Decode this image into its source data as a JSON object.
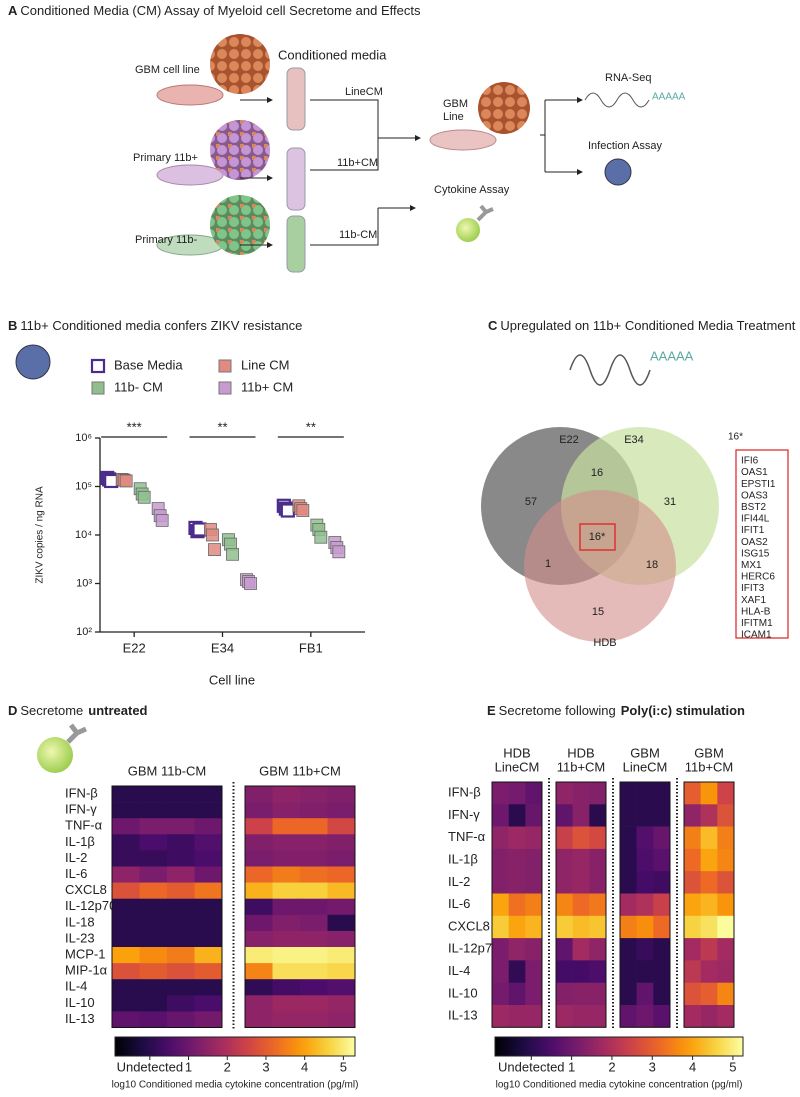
{
  "panel_a": {
    "label": "A",
    "title": "Conditioned Media (CM) Assay of Myeloid cell Secretome and Effects",
    "sources": [
      "GBM cell line",
      "Primary 11b+",
      "Primary 11b-"
    ],
    "media_heading": "Conditioned media",
    "media": [
      "LineCM",
      "11b+CM",
      "11b-CM"
    ],
    "target": [
      "GBM",
      "Line"
    ],
    "assays": [
      "RNA-Seq",
      "Infection Assay",
      "Cytokine Assay"
    ],
    "poly_a": "AAAAA"
  },
  "panel_c": {
    "label": "C",
    "title": "Upregulated on 11b+ Conditioned Media Treatment",
    "poly_a": "AAAAA",
    "sets": [
      "E22",
      "E34",
      "HDB"
    ],
    "regions": [
      57,
      16,
      31,
      "16*",
      1,
      18,
      15
    ],
    "list_title": "16*",
    "genes": [
      "IFI6",
      "OAS1",
      "EPSTI1",
      "OAS3",
      "BST2",
      "IFI44L",
      "IFIT1",
      "OAS2",
      "ISG15",
      "MX1",
      "HERC6",
      "IFIT3",
      "XAF1",
      "HLA-B",
      "IFITM1",
      "ICAM1"
    ]
  },
  "chart_data": [
    {
      "type": "scatter",
      "label": "B",
      "title": "11b+ Conditioned media confers ZIKV resistance",
      "categories": [
        "E22",
        "E34",
        "FB1"
      ],
      "series": [
        {
          "name": "Base Media",
          "color": "#4a2c8a",
          "filled": false,
          "values": [
            [
              150000,
              140000,
              130000
            ],
            [
              14000,
              12000,
              13000
            ],
            [
              40000,
              35000,
              32000
            ]
          ]
        },
        {
          "name": "Line CM",
          "color": "#e08a80",
          "filled": true,
          "values": [
            [
              140000,
              135000,
              130000
            ],
            [
              13000,
              10000,
              5000
            ],
            [
              40000,
              35000,
              32000
            ]
          ]
        },
        {
          "name": "11b-  CM",
          "color": "#8fbf8f",
          "filled": true,
          "values": [
            [
              90000,
              70000,
              60000
            ],
            [
              8000,
              6500,
              4000
            ],
            [
              16000,
              13000,
              9000
            ]
          ]
        },
        {
          "name": "11b+ CM",
          "color": "#c79bd0",
          "filled": true,
          "values": [
            [
              35000,
              25000,
              20000
            ],
            [
              1200,
              1100,
              1000
            ],
            [
              7000,
              5500,
              4500
            ]
          ]
        }
      ],
      "ylim": [
        100,
        1000000
      ],
      "log_y": true,
      "yticks": [
        {
          "value": 100,
          "label": "10²"
        },
        {
          "value": 1000,
          "label": "10³"
        },
        {
          "value": 10000,
          "label": "10⁴"
        },
        {
          "value": 100000,
          "label": "10⁵"
        },
        {
          "value": 1000000,
          "label": "10⁶"
        }
      ],
      "ylabel": "ZIKV copies / ng  RNA",
      "xlabel": "Cell line",
      "annotations": [
        "***",
        "**",
        "**"
      ]
    },
    {
      "type": "heatmap",
      "label": "D",
      "title": "Secretome",
      "title_emphasis": "untreated",
      "column_groups": [
        [
          "GBM 11b-CM"
        ],
        [
          "GBM 11b+CM"
        ]
      ],
      "rows": [
        "IFN-β",
        "IFN-γ",
        "TNF-α",
        "IL-1β",
        "IL-2",
        "IL-6",
        "CXCL8",
        "IL-12p70",
        "IL-18",
        "IL-23",
        "MCP-1",
        "MIP-1α",
        "IL-4",
        "IL-10",
        "IL-13"
      ],
      "values": [
        [
          0,
          0,
          0,
          0,
          1.3,
          1.5,
          1.4,
          1.3
        ],
        [
          0,
          0,
          0,
          0,
          1.2,
          1.4,
          1.3,
          1.2
        ],
        [
          1.0,
          1.2,
          1.2,
          1.0,
          2.5,
          3.2,
          3.2,
          2.6
        ],
        [
          0.2,
          0.5,
          0.3,
          0.6,
          1.3,
          1.4,
          1.4,
          1.3
        ],
        [
          0.2,
          0.2,
          0.3,
          0.5,
          1.2,
          1.3,
          1.3,
          1.2
        ],
        [
          1.5,
          1.2,
          1.5,
          1.0,
          3.2,
          3.5,
          3.3,
          3.2
        ],
        [
          2.8,
          3.2,
          3.0,
          3.4,
          4.2,
          4.6,
          4.6,
          4.3
        ],
        [
          0,
          0,
          0,
          0,
          0.3,
          1.0,
          1.0,
          1.1
        ],
        [
          0,
          0,
          0,
          0,
          1.0,
          1.3,
          1.2,
          0
        ],
        [
          0,
          0,
          0,
          0,
          1.4,
          1.5,
          1.5,
          1.4
        ],
        [
          4.0,
          3.7,
          3.5,
          4.2,
          5.0,
          5.1,
          5.1,
          5.0
        ],
        [
          2.8,
          3.0,
          2.8,
          3.0,
          3.6,
          4.8,
          4.8,
          4.7
        ],
        [
          0,
          0,
          0,
          0,
          0.1,
          0.4,
          0.5,
          0.6
        ],
        [
          0,
          0,
          0.3,
          0.5,
          1.5,
          1.7,
          1.7,
          1.6
        ],
        [
          0.8,
          0.7,
          0.9,
          1.1,
          1.5,
          1.6,
          1.6,
          1.5
        ]
      ],
      "colormap": "inferno",
      "clim": [
        -0.9,
        5.3
      ],
      "cticks": [
        {
          "value": 0,
          "label": "Undetected"
        },
        1,
        2,
        3,
        4,
        5
      ],
      "clabel": "log10 Conditioned media cytokine concentration (pg/ml)"
    },
    {
      "type": "heatmap",
      "label": "E",
      "title": "Secretome following",
      "title_emphasis": "Poly(i:c) stimulation",
      "column_groups": [
        [
          "HDB",
          "LineCM"
        ],
        [
          "HDB",
          "11b+CM"
        ],
        [
          "GBM",
          "LineCM"
        ],
        [
          "GBM",
          "11b+CM"
        ]
      ],
      "rows": [
        "IFN-β",
        "IFN-γ",
        "TNF-α",
        "IL-1β",
        "IL-2",
        "IL-6",
        "CXCL8",
        "IL-12p70",
        "IL-4",
        "IL-10",
        "IL-13"
      ],
      "values": [
        [
          1.2,
          1.1,
          0.8,
          1.5,
          1.4,
          1.3,
          0,
          0,
          0,
          3.0,
          3.8,
          2.5
        ],
        [
          1.0,
          0,
          0.9,
          0.8,
          1.4,
          0,
          0,
          0,
          0,
          1.5,
          2.0,
          2.8
        ],
        [
          1.5,
          1.7,
          1.6,
          2.4,
          2.8,
          2.6,
          0,
          0.6,
          0.9,
          3.5,
          4.3,
          3.5
        ],
        [
          1.3,
          1.4,
          1.3,
          1.5,
          1.6,
          1.4,
          0,
          0.5,
          0.7,
          3.2,
          4.0,
          3.6
        ],
        [
          1.3,
          1.4,
          1.3,
          1.5,
          1.6,
          1.4,
          0,
          0.4,
          0.3,
          2.8,
          3.2,
          2.8
        ],
        [
          4.0,
          3.3,
          3.5,
          3.6,
          3.2,
          3.4,
          1.8,
          2.0,
          2.4,
          4.0,
          4.2,
          3.8
        ],
        [
          4.5,
          4.0,
          4.2,
          4.5,
          4.3,
          4.4,
          3.5,
          3.7,
          3.2,
          4.6,
          4.8,
          5.2
        ],
        [
          1.2,
          1.5,
          1.4,
          0.8,
          1.8,
          1.5,
          0,
          0.2,
          0,
          1.8,
          2.2,
          1.8
        ],
        [
          1.2,
          0.1,
          1.2,
          0.4,
          0.4,
          0.5,
          0,
          0,
          0,
          2.2,
          1.8,
          1.7
        ],
        [
          1.1,
          0.8,
          1.2,
          1.3,
          1.4,
          1.4,
          0,
          0.8,
          0,
          2.8,
          3.0,
          3.6
        ],
        [
          1.7,
          1.6,
          1.6,
          1.7,
          1.6,
          1.6,
          0.8,
          1.0,
          0.7,
          1.8,
          1.6,
          1.8
        ]
      ],
      "colormap": "inferno",
      "clim": [
        -0.9,
        5.25
      ],
      "cticks": [
        {
          "value": 0,
          "label": "Undetected"
        },
        1,
        2,
        3,
        4,
        5
      ],
      "clabel": "log10 Conditioned media cytokine concentration (pg/ml)"
    }
  ]
}
